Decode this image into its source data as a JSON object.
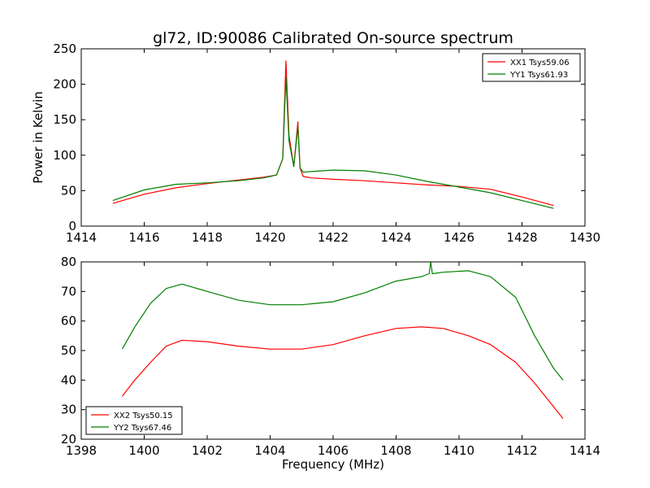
{
  "figure_title": "gl72, ID:90086 Calibrated On-source spectrum",
  "colors": {
    "xx": "#ff0000",
    "yy": "#008000",
    "axes": "#000000",
    "background": "#ffffff"
  },
  "chart_data": [
    {
      "type": "line",
      "title": "gl72, ID:90086 Calibrated On-source spectrum",
      "xlabel": "",
      "ylabel": "Power in Kelvin",
      "xlim": [
        1414,
        1430
      ],
      "ylim": [
        0,
        250
      ],
      "xticks": [
        "1414",
        "1416",
        "1418",
        "1420",
        "1422",
        "1424",
        "1426",
        "1428",
        "1430"
      ],
      "yticks": [
        "0",
        "50",
        "100",
        "150",
        "200",
        "250"
      ],
      "grid": false,
      "legend": "top-right",
      "series": [
        {
          "name": "XX1 Tsys59.06",
          "color": "#ff0000",
          "x": [
            1415.0,
            1416.0,
            1417.0,
            1418.0,
            1419.0,
            1419.8,
            1420.2,
            1420.4,
            1420.5,
            1420.6,
            1420.75,
            1420.88,
            1420.95,
            1421.05,
            1421.3,
            1422.0,
            1423.0,
            1424.0,
            1425.0,
            1426.0,
            1427.0,
            1428.0,
            1429.0
          ],
          "y": [
            32,
            45,
            54,
            60,
            65,
            69,
            72,
            95,
            233,
            128,
            84,
            147,
            82,
            70,
            68,
            66,
            64,
            61,
            58,
            56,
            52,
            41,
            29
          ]
        },
        {
          "name": "YY1 Tsys61.93",
          "color": "#008000",
          "x": [
            1415.0,
            1416.0,
            1417.0,
            1418.0,
            1419.0,
            1419.8,
            1420.2,
            1420.4,
            1420.5,
            1420.6,
            1420.75,
            1420.88,
            1420.95,
            1421.05,
            1421.3,
            1422.0,
            1423.0,
            1424.0,
            1425.0,
            1426.0,
            1427.0,
            1428.0,
            1429.0
          ],
          "y": [
            36,
            51,
            59,
            61,
            64,
            68,
            72,
            95,
            210,
            120,
            84,
            140,
            82,
            76,
            77,
            79,
            78,
            72,
            63,
            55,
            47,
            36,
            25
          ]
        }
      ]
    },
    {
      "type": "line",
      "title": "",
      "xlabel": "Frequency (MHz)",
      "ylabel": "",
      "xlim": [
        1398,
        1414
      ],
      "ylim": [
        20,
        80
      ],
      "xticks": [
        "1398",
        "1400",
        "1402",
        "1404",
        "1406",
        "1408",
        "1410",
        "1412",
        "1414"
      ],
      "yticks": [
        "20",
        "30",
        "40",
        "50",
        "60",
        "70",
        "80"
      ],
      "grid": false,
      "legend": "bottom-left",
      "series": [
        {
          "name": "XX2 Tsys50.15",
          "color": "#ff0000",
          "x": [
            1399.3,
            1399.7,
            1400.2,
            1400.7,
            1401.2,
            1402.0,
            1403.0,
            1404.0,
            1405.0,
            1406.0,
            1407.0,
            1408.0,
            1408.8,
            1409.5,
            1410.3,
            1411.0,
            1411.8,
            1412.4,
            1413.0,
            1413.3
          ],
          "y": [
            34.5,
            40,
            46,
            51.5,
            53.5,
            53,
            51.5,
            50.5,
            50.5,
            52,
            55,
            57.5,
            58,
            57.5,
            55,
            52,
            46,
            39,
            31,
            27
          ]
        },
        {
          "name": "YY2 Tsys67.46",
          "color": "#008000",
          "x": [
            1399.3,
            1399.7,
            1400.2,
            1400.7,
            1401.2,
            1402.0,
            1403.0,
            1404.0,
            1405.0,
            1406.0,
            1407.0,
            1408.0,
            1408.8,
            1409.05,
            1409.1,
            1409.15,
            1409.5,
            1410.3,
            1411.0,
            1411.8,
            1412.4,
            1413.0,
            1413.3
          ],
          "y": [
            50.5,
            58,
            66,
            71,
            72.5,
            70,
            67,
            65.5,
            65.5,
            66.5,
            69.5,
            73.5,
            75,
            76,
            80,
            76,
            76.5,
            77,
            75,
            68,
            55,
            44,
            40
          ]
        }
      ]
    }
  ]
}
